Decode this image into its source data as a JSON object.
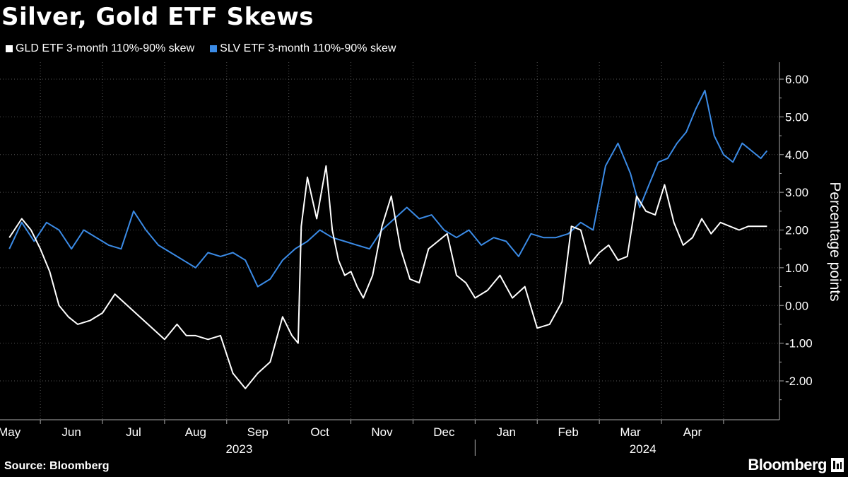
{
  "title": "Silver, Gold ETF Skews",
  "source": "Source: Bloomberg",
  "brand": "Bloomberg",
  "colors": {
    "gld": "#ffffff",
    "slv": "#3b8be6",
    "grid": "#555555",
    "background": "#000000"
  },
  "chart_data": {
    "type": "line",
    "title": "Silver, Gold ETF Skews",
    "ylabel": "Percentage points",
    "xlabel": "",
    "ylim": [
      -3.0,
      6.5
    ],
    "yticks": [
      6.0,
      5.0,
      4.0,
      3.0,
      2.0,
      1.0,
      0.0,
      -1.0,
      -2.0
    ],
    "ytick_labels": [
      "6.00",
      "5.00",
      "4.00",
      "3.00",
      "2.00",
      "1.00",
      "0.00",
      "-1.00",
      "-2.00"
    ],
    "month_labels": [
      "May",
      "Jun",
      "Jul",
      "Aug",
      "Sep",
      "Oct",
      "Nov",
      "Dec",
      "Jan",
      "Feb",
      "Mar",
      "Apr"
    ],
    "month_index": [
      0,
      1,
      2,
      3,
      4,
      5,
      6,
      7,
      8,
      9,
      10,
      11
    ],
    "year_labels": [
      {
        "label": "2023",
        "center_month": 3.7
      },
      {
        "label": "2024",
        "center_month": 10.2
      }
    ],
    "year_divider_month": 8.0,
    "x_range": [
      -0.15,
      12.4
    ],
    "series": [
      {
        "name": "GLD ETF 3-month 110%-90% skew",
        "x": [
          0,
          0.2,
          0.35,
          0.5,
          0.65,
          0.8,
          0.95,
          1.1,
          1.3,
          1.5,
          1.7,
          1.9,
          2.1,
          2.3,
          2.5,
          2.7,
          2.85,
          3.0,
          3.2,
          3.4,
          3.6,
          3.8,
          4.0,
          4.2,
          4.4,
          4.55,
          4.65,
          4.7,
          4.8,
          4.95,
          5.1,
          5.2,
          5.3,
          5.4,
          5.5,
          5.6,
          5.7,
          5.85,
          6.0,
          6.15,
          6.3,
          6.45,
          6.6,
          6.75,
          6.9,
          7.05,
          7.2,
          7.35,
          7.5,
          7.7,
          7.9,
          8.1,
          8.3,
          8.5,
          8.7,
          8.9,
          9.05,
          9.2,
          9.35,
          9.5,
          9.65,
          9.8,
          9.95,
          10.1,
          10.25,
          10.4,
          10.55,
          10.7,
          10.85,
          11.0,
          11.15,
          11.3,
          11.45,
          11.6,
          11.75,
          11.9,
          12.05,
          12.2
        ],
        "values": [
          1.8,
          2.3,
          2.0,
          1.5,
          0.9,
          0.0,
          -0.3,
          -0.5,
          -0.4,
          -0.2,
          0.3,
          0.0,
          -0.3,
          -0.6,
          -0.9,
          -0.5,
          -0.8,
          -0.8,
          -0.9,
          -0.8,
          -1.8,
          -2.2,
          -1.8,
          -1.5,
          -0.3,
          -0.8,
          -1.0,
          2.1,
          3.4,
          2.3,
          3.7,
          2.0,
          1.2,
          0.8,
          0.9,
          0.5,
          0.2,
          0.8,
          2.1,
          2.9,
          1.5,
          0.7,
          0.6,
          1.5,
          1.7,
          1.9,
          0.8,
          0.6,
          0.2,
          0.4,
          0.8,
          0.2,
          0.5,
          -0.6,
          -0.5,
          0.1,
          2.1,
          2.0,
          1.1,
          1.4,
          1.6,
          1.2,
          1.3,
          2.9,
          2.5,
          2.4,
          3.2,
          2.2,
          1.6,
          1.8,
          2.3,
          1.9,
          2.2,
          2.1,
          2.0,
          2.1,
          2.1,
          2.1
        ],
        "color": "#ffffff"
      },
      {
        "name": "SLV ETF 3-month 110%-90% skew",
        "x": [
          0,
          0.2,
          0.4,
          0.6,
          0.8,
          1.0,
          1.2,
          1.4,
          1.6,
          1.8,
          2.0,
          2.2,
          2.4,
          2.6,
          2.8,
          3.0,
          3.2,
          3.4,
          3.6,
          3.8,
          4.0,
          4.2,
          4.4,
          4.6,
          4.8,
          5.0,
          5.2,
          5.4,
          5.6,
          5.8,
          6.0,
          6.2,
          6.4,
          6.6,
          6.8,
          7.0,
          7.2,
          7.4,
          7.6,
          7.8,
          8.0,
          8.2,
          8.4,
          8.6,
          8.8,
          9.0,
          9.2,
          9.4,
          9.6,
          9.8,
          10.0,
          10.15,
          10.3,
          10.45,
          10.6,
          10.75,
          10.9,
          11.05,
          11.2,
          11.35,
          11.5,
          11.65,
          11.8,
          11.95,
          12.1,
          12.2
        ],
        "values": [
          1.5,
          2.2,
          1.7,
          2.2,
          2.0,
          1.5,
          2.0,
          1.8,
          1.6,
          1.5,
          2.5,
          2.0,
          1.6,
          1.4,
          1.2,
          1.0,
          1.4,
          1.3,
          1.4,
          1.2,
          0.5,
          0.7,
          1.2,
          1.5,
          1.7,
          2.0,
          1.8,
          1.7,
          1.6,
          1.5,
          2.0,
          2.3,
          2.6,
          2.3,
          2.4,
          2.0,
          1.8,
          2.0,
          1.6,
          1.8,
          1.7,
          1.3,
          1.9,
          1.8,
          1.8,
          1.9,
          2.2,
          2.0,
          3.7,
          4.3,
          3.5,
          2.6,
          3.2,
          3.8,
          3.9,
          4.3,
          4.6,
          5.2,
          5.7,
          4.5,
          4.0,
          3.8,
          4.3,
          4.1,
          3.9,
          4.1
        ],
        "color": "#3b8be6"
      }
    ]
  }
}
